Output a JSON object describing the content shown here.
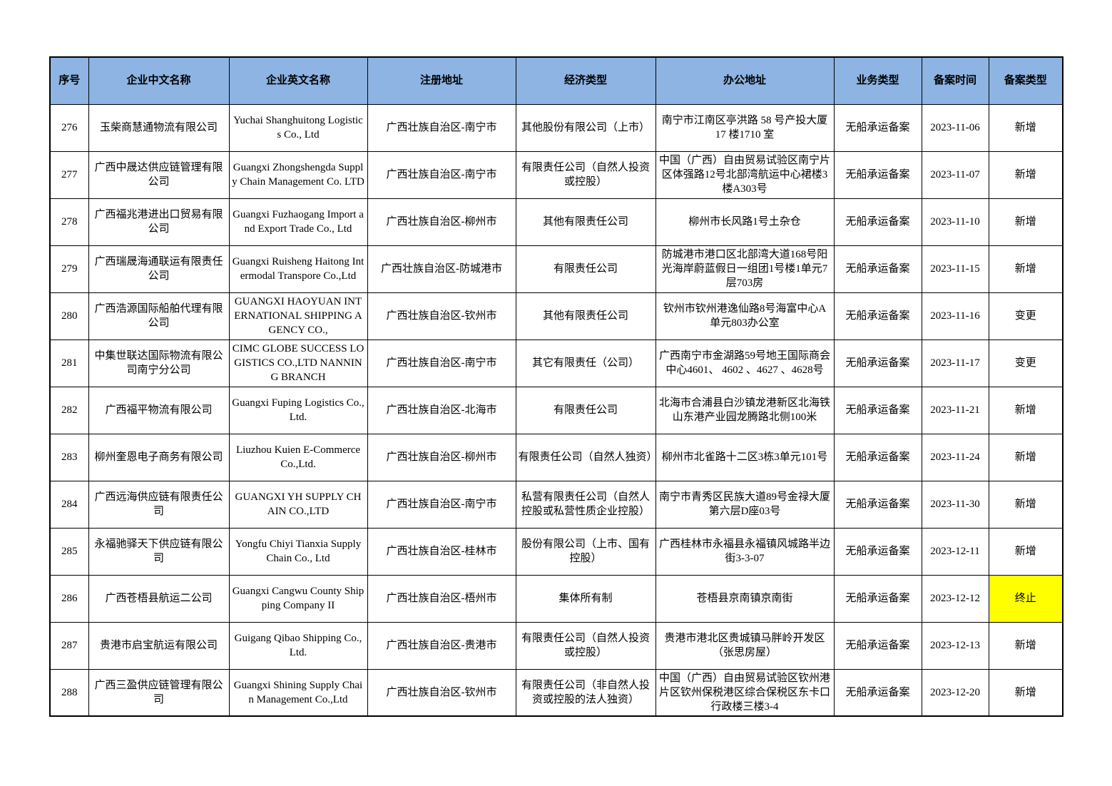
{
  "header_color": "#8DB4E2",
  "highlight_color": "#FFFF00",
  "columns": [
    "序号",
    "企业中文名称",
    "企业英文名称",
    "注册地址",
    "经济类型",
    "办公地址",
    "业务类型",
    "备案时间",
    "备案类型"
  ],
  "rows": [
    {
      "no": "276",
      "cn": "玉柴商慧通物流有限公司",
      "en": "Yuchai Shanghuitong Logistics Co., Ltd",
      "reg": "广西壮族自治区-南宁市",
      "econ": "其他股份有限公司（上市）",
      "office": "南宁市江南区亭洪路 58 号产投大厦 17 楼1710 室",
      "biz": "无船承运备案",
      "date": "2023-11-06",
      "type": "新增"
    },
    {
      "no": "277",
      "cn": "广西中晟达供应链管理有限公司",
      "en": "Guangxi Zhongshengda Supply Chain Management Co. LTD",
      "reg": "广西壮族自治区-南宁市",
      "econ": "有限责任公司（自然人投资或控股）",
      "office": "中国（广西）自由贸易试验区南宁片区体强路12号北部湾航运中心裙楼3楼A303号",
      "biz": "无船承运备案",
      "date": "2023-11-07",
      "type": "新增"
    },
    {
      "no": "278",
      "cn": "广西福兆港进出口贸易有限公司",
      "en": "Guangxi Fuzhaogang Import and Export Trade Co., Ltd",
      "reg": "广西壮族自治区-柳州市",
      "econ": "其他有限责任公司",
      "office": "柳州市长风路1号土杂仓",
      "biz": "无船承运备案",
      "date": "2023-11-10",
      "type": "新增"
    },
    {
      "no": "279",
      "cn": "广西瑞晟海通联运有限责任公司",
      "en": "Guangxi Ruisheng Haitong Intermodal Transpore Co.,Ltd",
      "reg": "广西壮族自治区-防城港市",
      "econ": "有限责任公司",
      "office": "防城港市港口区北部湾大道168号阳光海岸蔚蓝假日一组团1号楼1单元7层703房",
      "biz": "无船承运备案",
      "date": "2023-11-15",
      "type": "新增"
    },
    {
      "no": "280",
      "cn": "广西浩源国际船舶代理有限公司",
      "en": "GUANGXI HAOYUAN INTERNATIONAL SHIPPING AGENCY CO.,",
      "reg": "广西壮族自治区-钦州市",
      "econ": "其他有限责任公司",
      "office": "钦州市钦州港逸仙路8号海富中心A单元803办公室",
      "biz": "无船承运备案",
      "date": "2023-11-16",
      "type": "变更"
    },
    {
      "no": "281",
      "cn": "中集世联达国际物流有限公司南宁分公司",
      "en": "CIMC GLOBE SUCCESS LOGISTICS CO.,LTD NANNING BRANCH",
      "reg": "广西壮族自治区-南宁市",
      "econ": "其它有限责任（公司）",
      "office": "广西南宁市金湖路59号地王国际商会中心4601、 4602 、4627 、4628号",
      "biz": "无船承运备案",
      "date": "2023-11-17",
      "type": "变更"
    },
    {
      "no": "282",
      "cn": "广西福平物流有限公司",
      "en": "Guangxi Fuping Logistics Co.,Ltd.",
      "reg": "广西壮族自治区-北海市",
      "econ": "有限责任公司",
      "office": "北海市合浦县白沙镇龙港新区北海铁山东港产业园龙腾路北侧100米",
      "biz": "无船承运备案",
      "date": "2023-11-21",
      "type": "新增"
    },
    {
      "no": "283",
      "cn": "柳州奎恩电子商务有限公司",
      "en": "Liuzhou Kuien E-Commerce Co.,Ltd.",
      "reg": "广西壮族自治区-柳州市",
      "econ": "有限责任公司（自然人独资）",
      "office": "柳州市北雀路十二区3栋3单元101号",
      "biz": "无船承运备案",
      "date": "2023-11-24",
      "type": "新增"
    },
    {
      "no": "284",
      "cn": "广西远海供应链有限责任公司",
      "en": "GUANGXI YH SUPPLY CHAIN CO.,LTD",
      "reg": "广西壮族自治区-南宁市",
      "econ": "私营有限责任公司（自然人控股或私营性质企业控股）",
      "office": "南宁市青秀区民族大道89号金禄大厦第六层D座03号",
      "biz": "无船承运备案",
      "date": "2023-11-30",
      "type": "新增"
    },
    {
      "no": "285",
      "cn": "永福驰驿天下供应链有限公司",
      "en": "Yongfu Chiyi Tianxia Supply Chain Co., Ltd",
      "reg": "广西壮族自治区-桂林市",
      "econ": "股份有限公司（上市、国有控股）",
      "office": "广西桂林市永福县永福镇风城路半边街3-3-07",
      "biz": "无船承运备案",
      "date": "2023-12-11",
      "type": "新增"
    },
    {
      "no": "286",
      "cn": "广西苍梧县航运二公司",
      "en": "Guangxi Cangwu County Shipping Company II",
      "reg": "广西壮族自治区-梧州市",
      "econ": "集体所有制",
      "office": "苍梧县京南镇京南街",
      "biz": "无船承运备案",
      "date": "2023-12-12",
      "type": "终止",
      "highlight": true
    },
    {
      "no": "287",
      "cn": "贵港市启宝航运有限公司",
      "en": "Guigang Qibao Shipping Co., Ltd.",
      "reg": "广西壮族自治区-贵港市",
      "econ": "有限责任公司（自然人投资或控股）",
      "office": "贵港市港北区贵城镇马胖岭开发区（张思房屋）",
      "biz": "无船承运备案",
      "date": "2023-12-13",
      "type": "新增"
    },
    {
      "no": "288",
      "cn": "广西三盈供应链管理有限公司",
      "en": "Guangxi Shining Supply Chain Management Co.,Ltd",
      "reg": "广西壮族自治区-钦州市",
      "econ": "有限责任公司（非自然人投资或控股的法人独资）",
      "office": "中国（广西）自由贸易试验区钦州港片区钦州保税港区综合保税区东卡口行政楼三楼3-4",
      "biz": "无船承运备案",
      "date": "2023-12-20",
      "type": "新增"
    }
  ]
}
